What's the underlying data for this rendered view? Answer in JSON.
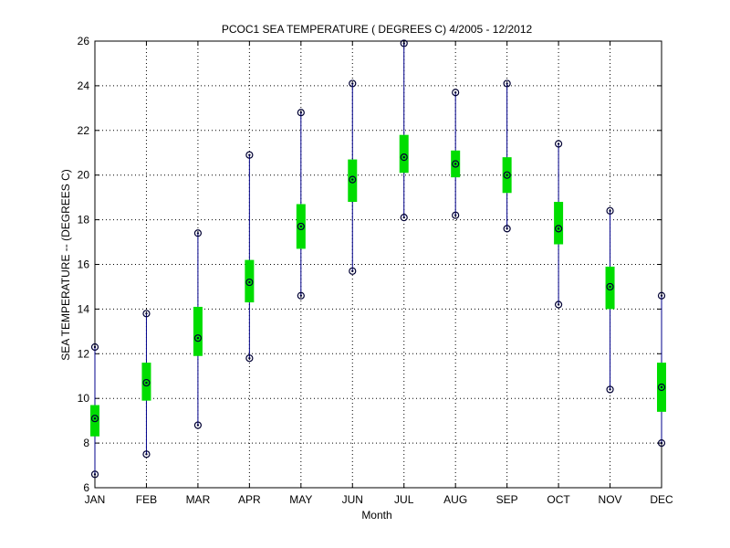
{
  "chart_data": {
    "type": "box",
    "title": "PCOC1  SEA TEMPERATURE ( DEGREES C) 4/2005 - 12/2012",
    "xlabel": "Month",
    "ylabel": "SEA TEMPERATURE -- (DEGREES C)",
    "categories": [
      "JAN",
      "FEB",
      "MAR",
      "APR",
      "MAY",
      "JUN",
      "JUL",
      "AUG",
      "SEP",
      "OCT",
      "NOV",
      "DEC"
    ],
    "ylim": [
      6,
      26
    ],
    "yticks": [
      "6",
      "8",
      "10",
      "12",
      "14",
      "16",
      "18",
      "20",
      "22",
      "24",
      "26"
    ],
    "grid": true,
    "series": [
      {
        "min": [
          6.6,
          7.5,
          8.8,
          11.8,
          14.6,
          15.7,
          18.1,
          18.2,
          17.6,
          14.2,
          10.4,
          8.0
        ],
        "q1": [
          8.3,
          9.9,
          11.9,
          14.3,
          16.7,
          18.8,
          20.1,
          19.9,
          19.2,
          16.9,
          14.0,
          9.4
        ],
        "median": [
          9.1,
          10.7,
          12.7,
          15.2,
          17.7,
          19.8,
          20.8,
          20.5,
          20.0,
          17.6,
          15.0,
          10.5
        ],
        "q3": [
          9.7,
          11.6,
          14.1,
          16.2,
          18.7,
          20.7,
          21.8,
          21.1,
          20.8,
          18.8,
          15.9,
          11.6
        ],
        "max": [
          12.3,
          13.8,
          17.4,
          20.9,
          22.8,
          24.1,
          25.9,
          23.7,
          24.1,
          21.4,
          18.4,
          14.6
        ]
      }
    ],
    "colors": {
      "whisker": "#00008b",
      "box": "#00dd00",
      "marker": "#000033",
      "grid": "#000000",
      "axis": "#000000"
    }
  }
}
